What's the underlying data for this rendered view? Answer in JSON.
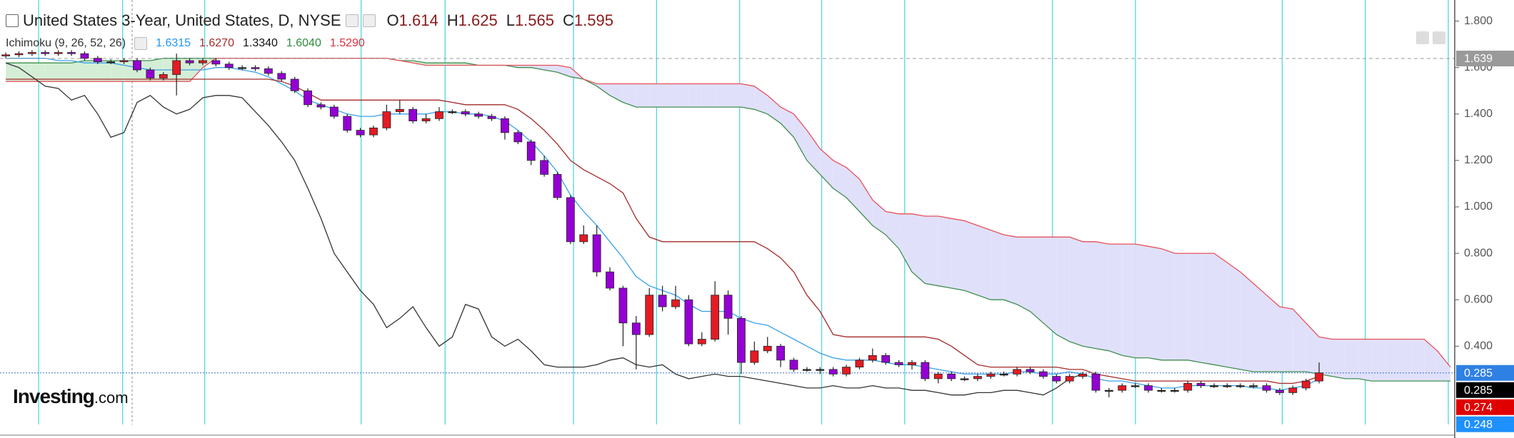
{
  "header": {
    "title": "United States 3-Year, United States, D, NYSE",
    "ohlc": [
      {
        "label": "O",
        "value": 1.614
      },
      {
        "label": "H",
        "value": 1.625
      },
      {
        "label": "L",
        "value": 1.565
      },
      {
        "label": "C",
        "value": 1.595
      }
    ]
  },
  "indicator": {
    "label": "Ichimoku (9, 26, 52, 26)",
    "values": [
      {
        "text": "1.6315",
        "color": "#2196f3"
      },
      {
        "text": "1.6270",
        "color": "#a52a2a"
      },
      {
        "text": "1.3340",
        "color": "#111111"
      },
      {
        "text": "1.6040",
        "color": "#2e8b3a"
      },
      {
        "text": "1.5290",
        "color": "#e0303a"
      }
    ]
  },
  "logo": {
    "brand": "Investing",
    "suffix": ".com"
  },
  "chart_data": {
    "type": "candlestick",
    "open": [
      1.65,
      1.655,
      1.66,
      1.665,
      1.66,
      1.665,
      1.66,
      1.64,
      1.625,
      1.625,
      1.63,
      1.59,
      1.555,
      1.57,
      1.63,
      1.62,
      1.63,
      1.615,
      1.6,
      1.6,
      1.595,
      1.575,
      1.55,
      1.5,
      1.44,
      1.43,
      1.39,
      1.33,
      1.31,
      1.34,
      1.41,
      1.42,
      1.37,
      1.38,
      1.41,
      1.41,
      1.4,
      1.39,
      1.38,
      1.32,
      1.28,
      1.2,
      1.14,
      1.04,
      0.85,
      0.88,
      0.72,
      0.65,
      0.5,
      0.45,
      0.62,
      0.57,
      0.6,
      0.41,
      0.43,
      0.62,
      0.52,
      0.33,
      0.38,
      0.4,
      0.34,
      0.3,
      0.3,
      0.3,
      0.28,
      0.31,
      0.34,
      0.36,
      0.33,
      0.32,
      0.33,
      0.26,
      0.28,
      0.26,
      0.26,
      0.27,
      0.28,
      0.28,
      0.3,
      0.29,
      0.27,
      0.25,
      0.27,
      0.28,
      0.21,
      0.21,
      0.23,
      0.23,
      0.21,
      0.21,
      0.21,
      0.24,
      0.23,
      0.23,
      0.23,
      0.23,
      0.23,
      0.21,
      0.2,
      0.22,
      0.25
    ],
    "high": [
      1.665,
      1.67,
      1.675,
      1.675,
      1.675,
      1.675,
      1.67,
      1.65,
      1.635,
      1.64,
      1.64,
      1.6,
      1.58,
      1.66,
      1.64,
      1.64,
      1.64,
      1.625,
      1.61,
      1.61,
      1.605,
      1.585,
      1.56,
      1.51,
      1.45,
      1.44,
      1.4,
      1.34,
      1.35,
      1.44,
      1.46,
      1.43,
      1.4,
      1.43,
      1.42,
      1.42,
      1.41,
      1.4,
      1.39,
      1.33,
      1.29,
      1.22,
      1.15,
      1.05,
      0.92,
      0.92,
      0.74,
      0.66,
      0.53,
      0.65,
      0.66,
      0.66,
      0.62,
      0.46,
      0.68,
      0.64,
      0.53,
      0.42,
      0.44,
      0.41,
      0.35,
      0.31,
      0.31,
      0.31,
      0.32,
      0.35,
      0.39,
      0.37,
      0.34,
      0.34,
      0.34,
      0.29,
      0.29,
      0.27,
      0.28,
      0.29,
      0.29,
      0.31,
      0.31,
      0.3,
      0.28,
      0.28,
      0.29,
      0.29,
      0.22,
      0.24,
      0.24,
      0.24,
      0.22,
      0.22,
      0.25,
      0.25,
      0.24,
      0.24,
      0.24,
      0.24,
      0.24,
      0.22,
      0.23,
      0.26,
      0.33
    ],
    "low": [
      1.64,
      1.645,
      1.65,
      1.65,
      1.65,
      1.65,
      1.63,
      1.615,
      1.615,
      1.615,
      1.58,
      1.545,
      1.545,
      1.48,
      1.61,
      1.61,
      1.605,
      1.59,
      1.59,
      1.585,
      1.565,
      1.54,
      1.49,
      1.43,
      1.42,
      1.38,
      1.32,
      1.3,
      1.3,
      1.33,
      1.4,
      1.36,
      1.36,
      1.37,
      1.4,
      1.39,
      1.38,
      1.37,
      1.29,
      1.27,
      1.18,
      1.13,
      1.03,
      0.84,
      0.84,
      0.7,
      0.64,
      0.4,
      0.3,
      0.44,
      0.55,
      0.56,
      0.4,
      0.4,
      0.42,
      0.45,
      0.28,
      0.32,
      0.37,
      0.31,
      0.29,
      0.29,
      0.28,
      0.27,
      0.27,
      0.3,
      0.33,
      0.32,
      0.31,
      0.3,
      0.25,
      0.24,
      0.25,
      0.25,
      0.25,
      0.26,
      0.27,
      0.27,
      0.28,
      0.26,
      0.24,
      0.24,
      0.26,
      0.2,
      0.18,
      0.2,
      0.22,
      0.2,
      0.2,
      0.2,
      0.2,
      0.22,
      0.22,
      0.22,
      0.22,
      0.22,
      0.2,
      0.19,
      0.19,
      0.21,
      0.24
    ],
    "close": [
      1.655,
      1.66,
      1.665,
      1.66,
      1.665,
      1.66,
      1.64,
      1.625,
      1.625,
      1.63,
      1.59,
      1.555,
      1.57,
      1.63,
      1.62,
      1.63,
      1.615,
      1.6,
      1.6,
      1.595,
      1.575,
      1.55,
      1.5,
      1.44,
      1.43,
      1.39,
      1.33,
      1.31,
      1.34,
      1.41,
      1.42,
      1.37,
      1.38,
      1.41,
      1.41,
      1.4,
      1.39,
      1.38,
      1.32,
      1.28,
      1.2,
      1.14,
      1.04,
      0.85,
      0.88,
      0.72,
      0.65,
      0.5,
      0.45,
      0.62,
      0.57,
      0.6,
      0.41,
      0.43,
      0.62,
      0.52,
      0.33,
      0.38,
      0.4,
      0.34,
      0.3,
      0.3,
      0.3,
      0.28,
      0.31,
      0.34,
      0.36,
      0.33,
      0.32,
      0.33,
      0.26,
      0.28,
      0.26,
      0.26,
      0.27,
      0.28,
      0.28,
      0.3,
      0.29,
      0.27,
      0.25,
      0.27,
      0.28,
      0.21,
      0.21,
      0.23,
      0.23,
      0.21,
      0.21,
      0.21,
      0.24,
      0.23,
      0.23,
      0.23,
      0.23,
      0.23,
      0.21,
      0.2,
      0.22,
      0.25,
      0.285
    ],
    "up_color": "#e31b23",
    "down_color": "#9400d3",
    "flat_color": "#222222",
    "ylim": [
      0.063,
      1.891
    ],
    "yticks": [
      {
        "value": 1.8,
        "label": "1.800"
      },
      {
        "value": 1.6,
        "label": "1.600"
      },
      {
        "value": 1.4,
        "label": "1.400"
      },
      {
        "value": 1.2,
        "label": "1.200"
      },
      {
        "value": 1.0,
        "label": "1.000"
      },
      {
        "value": 0.8,
        "label": "0.800"
      },
      {
        "value": 0.6,
        "label": "0.600"
      },
      {
        "value": 0.4,
        "label": "0.400"
      }
    ],
    "lines": [
      {
        "color": "#3aa0e8",
        "values": [
          1.64,
          1.64,
          1.64,
          1.64,
          1.63,
          1.63,
          1.62,
          1.62,
          1.62,
          1.61,
          1.6,
          1.59,
          1.59,
          1.59,
          1.59,
          1.59,
          1.6,
          1.6,
          1.59,
          1.58,
          1.56,
          1.53,
          1.5,
          1.46,
          1.44,
          1.42,
          1.4,
          1.39,
          1.39,
          1.4,
          1.4,
          1.4,
          1.4,
          1.41,
          1.41,
          1.4,
          1.4,
          1.39,
          1.37,
          1.33,
          1.28,
          1.22,
          1.15,
          1.05,
          0.98,
          0.92,
          0.85,
          0.78,
          0.7,
          0.66,
          0.64,
          0.62,
          0.58,
          0.55,
          0.55,
          0.55,
          0.52,
          0.5,
          0.49,
          0.46,
          0.43,
          0.4,
          0.37,
          0.35,
          0.34,
          0.34,
          0.34,
          0.33,
          0.32,
          0.32,
          0.31,
          0.3,
          0.29,
          0.28,
          0.28,
          0.28,
          0.28,
          0.29,
          0.29,
          0.28,
          0.28,
          0.29,
          0.28,
          0.26,
          0.25,
          0.25,
          0.24,
          0.23,
          0.22,
          0.22,
          0.23,
          0.23,
          0.23,
          0.23,
          0.23,
          0.22,
          0.22,
          0.21,
          0.22,
          0.23,
          0.26
        ]
      },
      {
        "color": "#a52a2a",
        "values": [
          1.55,
          1.55,
          1.55,
          1.55,
          1.55,
          1.55,
          1.55,
          1.55,
          1.55,
          1.55,
          1.55,
          1.55,
          1.55,
          1.55,
          1.55,
          1.55,
          1.55,
          1.55,
          1.55,
          1.55,
          1.55,
          1.54,
          1.52,
          1.49,
          1.46,
          1.46,
          1.46,
          1.46,
          1.46,
          1.46,
          1.46,
          1.46,
          1.46,
          1.46,
          1.45,
          1.44,
          1.44,
          1.44,
          1.44,
          1.42,
          1.38,
          1.33,
          1.27,
          1.2,
          1.16,
          1.13,
          1.1,
          1.06,
          0.95,
          0.87,
          0.85,
          0.85,
          0.85,
          0.85,
          0.85,
          0.85,
          0.85,
          0.85,
          0.82,
          0.78,
          0.72,
          0.62,
          0.55,
          0.45,
          0.44,
          0.44,
          0.44,
          0.44,
          0.44,
          0.44,
          0.44,
          0.43,
          0.4,
          0.36,
          0.32,
          0.31,
          0.31,
          0.31,
          0.31,
          0.31,
          0.31,
          0.3,
          0.3,
          0.28,
          0.27,
          0.26,
          0.25,
          0.25,
          0.25,
          0.25,
          0.25,
          0.25,
          0.25,
          0.25,
          0.25,
          0.25,
          0.25,
          0.24,
          0.24,
          0.25,
          0.27
        ]
      },
      {
        "color": "#333333",
        "values": [
          1.62,
          1.6,
          1.56,
          1.52,
          1.51,
          1.46,
          1.48,
          1.4,
          1.3,
          1.32,
          1.45,
          1.48,
          1.43,
          1.4,
          1.42,
          1.47,
          1.48,
          1.48,
          1.47,
          1.41,
          1.35,
          1.28,
          1.2,
          1.08,
          0.95,
          0.8,
          0.72,
          0.64,
          0.58,
          0.48,
          0.52,
          0.57,
          0.48,
          0.4,
          0.44,
          0.58,
          0.56,
          0.44,
          0.4,
          0.43,
          0.38,
          0.32,
          0.31,
          0.31,
          0.31,
          0.32,
          0.34,
          0.35,
          0.32,
          0.31,
          0.32,
          0.28,
          0.26,
          0.27,
          0.28,
          0.27,
          0.27,
          0.26,
          0.25,
          0.24,
          0.23,
          0.22,
          0.22,
          0.23,
          0.22,
          0.22,
          0.23,
          0.22,
          0.22,
          0.21,
          0.21,
          0.2,
          0.19,
          0.19,
          0.2,
          0.2,
          0.21,
          0.21,
          0.2,
          0.19,
          0.22,
          0.26,
          0.28
        ]
      }
    ],
    "senkou_a": {
      "color": "#3f8f50",
      "values": [
        1.62,
        1.62,
        1.62,
        1.62,
        1.62,
        1.62,
        1.63,
        1.63,
        1.63,
        1.63,
        1.63,
        1.63,
        1.64,
        1.64,
        1.64,
        1.64,
        1.64,
        1.64,
        1.64,
        1.64,
        1.64,
        1.64,
        1.64,
        1.64,
        1.64,
        1.64,
        1.64,
        1.64,
        1.64,
        1.64,
        1.63,
        1.63,
        1.62,
        1.62,
        1.62,
        1.62,
        1.61,
        1.61,
        1.61,
        1.6,
        1.6,
        1.59,
        1.58,
        1.56,
        1.55,
        1.52,
        1.48,
        1.45,
        1.43,
        1.43,
        1.43,
        1.43,
        1.43,
        1.43,
        1.43,
        1.43,
        1.43,
        1.42,
        1.4,
        1.36,
        1.3,
        1.2,
        1.14,
        1.08,
        1.04,
        0.98,
        0.92,
        0.88,
        0.82,
        0.72,
        0.67,
        0.66,
        0.65,
        0.64,
        0.62,
        0.6,
        0.6,
        0.58,
        0.55,
        0.5,
        0.45,
        0.42,
        0.4,
        0.39,
        0.38,
        0.36,
        0.35,
        0.35,
        0.34,
        0.34,
        0.34,
        0.33,
        0.32,
        0.31,
        0.3,
        0.29,
        0.29,
        0.29,
        0.29,
        0.29,
        0.28,
        0.27,
        0.26,
        0.26,
        0.25,
        0.25,
        0.25,
        0.25,
        0.25,
        0.25,
        0.25
      ]
    },
    "senkou_b": {
      "color": "#e8505a",
      "values": [
        1.54,
        1.54,
        1.54,
        1.54,
        1.54,
        1.54,
        1.54,
        1.54,
        1.54,
        1.54,
        1.54,
        1.54,
        1.54,
        1.54,
        1.54,
        1.6,
        1.64,
        1.64,
        1.64,
        1.64,
        1.64,
        1.64,
        1.64,
        1.64,
        1.64,
        1.64,
        1.64,
        1.64,
        1.64,
        1.64,
        1.63,
        1.62,
        1.61,
        1.61,
        1.61,
        1.61,
        1.61,
        1.61,
        1.61,
        1.61,
        1.61,
        1.61,
        1.61,
        1.6,
        1.55,
        1.53,
        1.53,
        1.53,
        1.53,
        1.53,
        1.53,
        1.53,
        1.53,
        1.53,
        1.53,
        1.53,
        1.53,
        1.52,
        1.48,
        1.43,
        1.4,
        1.33,
        1.25,
        1.2,
        1.17,
        1.12,
        1.03,
        0.98,
        0.97,
        0.97,
        0.96,
        0.96,
        0.95,
        0.94,
        0.92,
        0.9,
        0.88,
        0.87,
        0.87,
        0.87,
        0.87,
        0.87,
        0.85,
        0.85,
        0.84,
        0.84,
        0.84,
        0.83,
        0.82,
        0.8,
        0.8,
        0.8,
        0.8,
        0.76,
        0.72,
        0.67,
        0.62,
        0.57,
        0.56,
        0.5,
        0.44,
        0.43,
        0.43,
        0.43,
        0.43,
        0.43,
        0.43,
        0.43,
        0.43,
        0.38,
        0.31
      ]
    },
    "cloud_colors": {
      "bullish": "#d4eed6",
      "bearish": "#e0e0fb"
    },
    "price_lines": [
      {
        "value": 1.639,
        "color": "#9a9a9a"
      },
      {
        "value": 0.285,
        "color": "#3b6fd6"
      }
    ],
    "price_tags": [
      {
        "value": 1.639,
        "color": "#9a9a9a"
      },
      {
        "value": 0.285,
        "color": "#2f80e4"
      },
      {
        "value": 0.285,
        "color": "#000000"
      },
      {
        "value": 0.274,
        "color": "#e00000"
      },
      {
        "value": 0.248,
        "color": "#1e90ff"
      }
    ]
  }
}
